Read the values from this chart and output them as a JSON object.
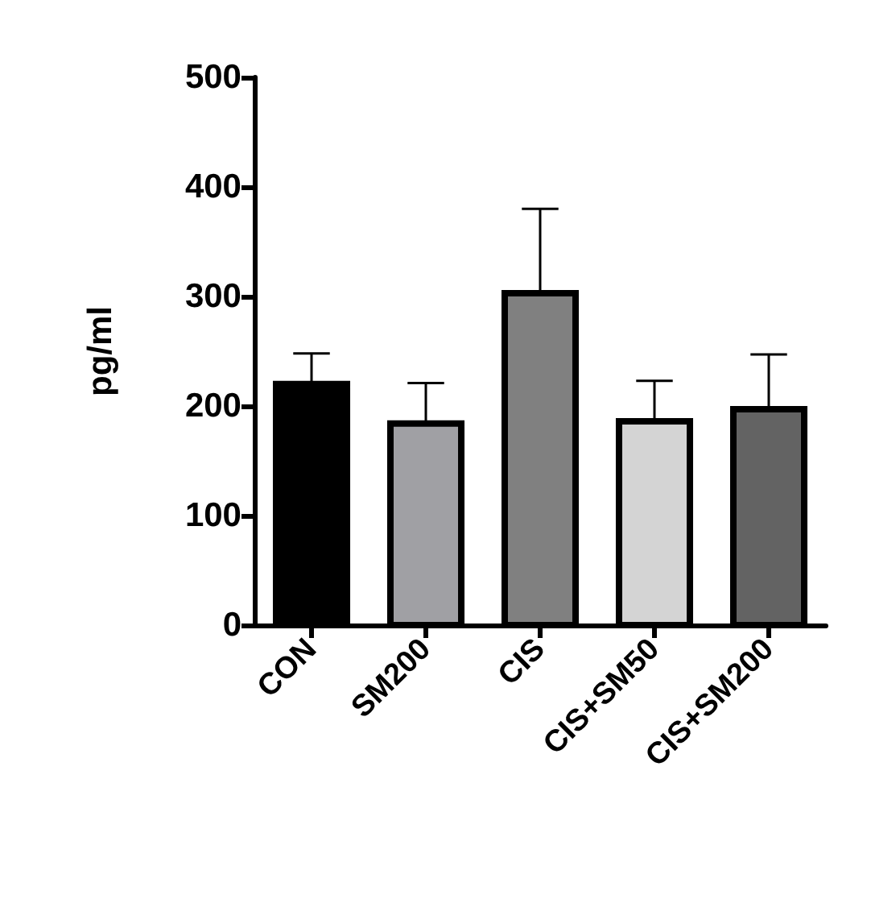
{
  "chart_data": {
    "type": "bar",
    "ylabel": "pg/ml",
    "categories": [
      "CON",
      "SM200",
      "CIS",
      "CIS+SM50",
      "CIS+SM200"
    ],
    "values": [
      220,
      184,
      303,
      186,
      197
    ],
    "colors": [
      "#000000",
      "#a0a0a4",
      "#808080",
      "#d4d4d4",
      "#636363"
    ],
    "errors": [
      [
        220,
        248
      ],
      [
        184,
        221
      ],
      [
        303,
        380
      ],
      [
        186,
        223
      ],
      [
        197,
        247
      ]
    ],
    "ylim": [
      0,
      500
    ],
    "yticks": [
      0,
      100,
      200,
      300,
      400,
      500
    ],
    "grid": false
  }
}
